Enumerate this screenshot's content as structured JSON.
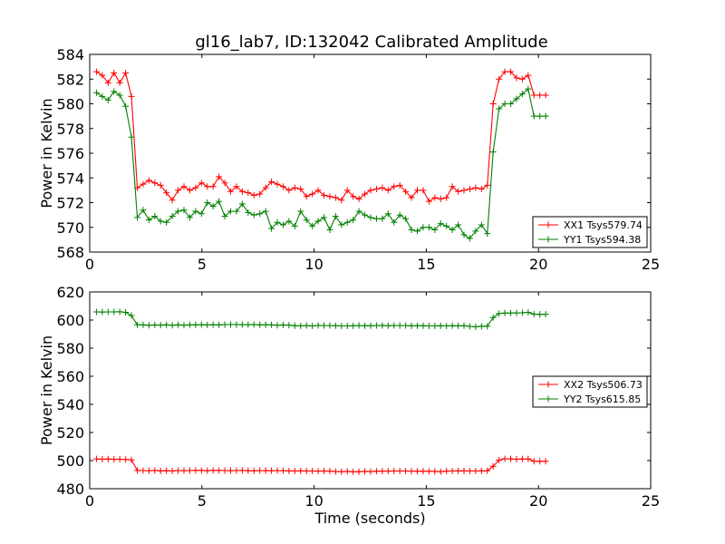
{
  "chart_data": [
    {
      "type": "line",
      "title": "gl16_lab7, ID:132042 Calibrated Amplitude",
      "xlabel": "",
      "ylabel": "Power in Kelvin",
      "xlim": [
        0,
        25
      ],
      "ylim": [
        568,
        584
      ],
      "xticks": [
        0,
        5,
        10,
        15,
        20,
        25
      ],
      "yticks": [
        568,
        570,
        572,
        574,
        576,
        578,
        580,
        582,
        584
      ],
      "grid": false,
      "legend_position": "lower-right",
      "x": [
        0.3,
        0.56,
        0.82,
        1.08,
        1.34,
        1.6,
        1.86,
        2.12,
        2.38,
        2.64,
        2.9,
        3.16,
        3.42,
        3.68,
        3.94,
        4.2,
        4.46,
        4.72,
        4.98,
        5.24,
        5.5,
        5.76,
        6.02,
        6.28,
        6.54,
        6.8,
        7.06,
        7.32,
        7.58,
        7.84,
        8.1,
        8.36,
        8.62,
        8.88,
        9.14,
        9.4,
        9.66,
        9.92,
        10.18,
        10.44,
        10.7,
        10.96,
        11.22,
        11.48,
        11.74,
        12.0,
        12.26,
        12.52,
        12.78,
        13.04,
        13.3,
        13.56,
        13.82,
        14.08,
        14.34,
        14.6,
        14.86,
        15.12,
        15.38,
        15.64,
        15.9,
        16.16,
        16.42,
        16.68,
        16.94,
        17.2,
        17.46,
        17.72,
        17.98,
        18.24,
        18.5,
        18.76,
        19.02,
        19.28,
        19.54,
        19.8,
        20.06,
        20.32
      ],
      "series": [
        {
          "name": "XX1 Tsys579.74",
          "color": "#ff0000",
          "values": [
            582.6,
            582.3,
            581.7,
            582.5,
            581.7,
            582.5,
            580.6,
            573.2,
            573.5,
            573.8,
            573.6,
            573.4,
            572.8,
            572.2,
            573.0,
            573.3,
            573.0,
            573.2,
            573.6,
            573.3,
            573.3,
            574.1,
            573.6,
            572.9,
            573.3,
            572.9,
            572.8,
            572.6,
            572.7,
            573.2,
            573.7,
            573.5,
            573.3,
            573.0,
            573.2,
            573.1,
            572.5,
            572.7,
            573.0,
            572.6,
            572.5,
            572.4,
            572.2,
            573.0,
            572.5,
            572.3,
            572.7,
            573.0,
            573.1,
            573.2,
            573.0,
            573.3,
            573.4,
            572.9,
            572.4,
            573.0,
            573.0,
            572.1,
            572.4,
            572.3,
            572.4,
            573.3,
            572.9,
            573.0,
            573.1,
            573.2,
            573.1,
            573.4,
            580.0,
            582.0,
            582.6,
            582.6,
            582.1,
            582.0,
            582.3,
            580.7,
            580.7,
            580.7
          ]
        },
        {
          "name": "YY1 Tsys594.38",
          "color": "#008000",
          "values": [
            580.9,
            580.6,
            580.3,
            581.0,
            580.7,
            579.8,
            577.3,
            570.8,
            571.4,
            570.6,
            570.9,
            570.5,
            570.4,
            570.9,
            571.3,
            571.4,
            570.8,
            571.3,
            571.1,
            572.0,
            571.7,
            572.1,
            570.9,
            571.3,
            571.3,
            571.9,
            571.2,
            571.0,
            571.1,
            571.3,
            569.9,
            570.4,
            570.2,
            570.5,
            570.1,
            571.3,
            570.6,
            570.1,
            570.5,
            570.8,
            569.8,
            570.9,
            570.2,
            570.4,
            570.6,
            571.3,
            571.0,
            570.8,
            570.7,
            570.7,
            571.1,
            570.4,
            571.0,
            570.7,
            569.8,
            569.7,
            570.0,
            570.0,
            569.8,
            570.3,
            570.1,
            569.8,
            570.2,
            569.4,
            569.1,
            569.7,
            570.2,
            569.5,
            576.1,
            579.6,
            580.0,
            580.0,
            580.4,
            580.8,
            581.2,
            579.0,
            579.0,
            579.0
          ]
        }
      ]
    },
    {
      "type": "line",
      "title": "",
      "xlabel": "Time (seconds)",
      "ylabel": "Power in Kelvin",
      "xlim": [
        0,
        25
      ],
      "ylim": [
        480,
        620
      ],
      "xticks": [
        0,
        5,
        10,
        15,
        20,
        25
      ],
      "yticks": [
        480,
        500,
        520,
        540,
        560,
        580,
        600,
        620
      ],
      "grid": false,
      "legend_position": "center-right",
      "x": [
        0.3,
        0.56,
        0.82,
        1.08,
        1.34,
        1.6,
        1.86,
        2.12,
        2.38,
        2.64,
        2.9,
        3.16,
        3.42,
        3.68,
        3.94,
        4.2,
        4.46,
        4.72,
        4.98,
        5.24,
        5.5,
        5.76,
        6.02,
        6.28,
        6.54,
        6.8,
        7.06,
        7.32,
        7.58,
        7.84,
        8.1,
        8.36,
        8.62,
        8.88,
        9.14,
        9.4,
        9.66,
        9.92,
        10.18,
        10.44,
        10.7,
        10.96,
        11.22,
        11.48,
        11.74,
        12.0,
        12.26,
        12.52,
        12.78,
        13.04,
        13.3,
        13.56,
        13.82,
        14.08,
        14.34,
        14.6,
        14.86,
        15.12,
        15.38,
        15.64,
        15.9,
        16.16,
        16.42,
        16.68,
        16.94,
        17.2,
        17.46,
        17.72,
        17.98,
        18.24,
        18.5,
        18.76,
        19.02,
        19.28,
        19.54,
        19.8,
        20.06,
        20.32
      ],
      "series": [
        {
          "name": "XX2 Tsys506.73",
          "color": "#ff0000",
          "values": [
            501.2,
            501.0,
            501.1,
            500.9,
            501.0,
            500.8,
            500.5,
            493.0,
            492.9,
            492.8,
            493.0,
            492.7,
            492.8,
            492.6,
            492.9,
            492.8,
            492.9,
            493.0,
            493.0,
            492.8,
            493.0,
            493.0,
            492.9,
            492.8,
            492.9,
            493.0,
            492.8,
            492.7,
            492.9,
            492.8,
            492.8,
            492.9,
            492.8,
            492.7,
            492.6,
            492.7,
            492.6,
            492.6,
            492.5,
            492.6,
            492.5,
            492.2,
            492.1,
            492.3,
            492.0,
            492.1,
            492.3,
            492.2,
            492.4,
            492.5,
            492.5,
            492.6,
            492.6,
            492.6,
            492.5,
            492.4,
            492.5,
            492.4,
            492.3,
            492.1,
            492.5,
            492.6,
            492.7,
            492.7,
            492.6,
            492.6,
            492.7,
            492.8,
            496.0,
            500.3,
            501.3,
            501.2,
            501.0,
            501.1,
            501.2,
            499.5,
            499.5,
            499.5
          ]
        },
        {
          "name": "YY2 Tsys615.85",
          "color": "#008000",
          "values": [
            605.8,
            605.7,
            605.8,
            605.8,
            605.9,
            605.5,
            603.2,
            596.6,
            596.6,
            596.3,
            596.5,
            596.4,
            596.6,
            596.3,
            596.6,
            596.3,
            596.6,
            596.6,
            596.7,
            596.5,
            596.7,
            596.5,
            596.8,
            596.8,
            596.8,
            596.7,
            596.7,
            596.8,
            596.6,
            596.7,
            596.6,
            596.3,
            596.5,
            596.4,
            596.0,
            595.9,
            596.1,
            595.8,
            596.2,
            596.1,
            596.1,
            596.0,
            595.8,
            595.8,
            595.9,
            596.1,
            596.0,
            596.0,
            596.1,
            596.2,
            596.0,
            596.1,
            596.1,
            596.1,
            595.9,
            596.0,
            596.0,
            595.8,
            595.8,
            596.0,
            595.8,
            596.0,
            595.9,
            596.0,
            595.5,
            595.2,
            595.6,
            595.6,
            601.8,
            604.6,
            605.0,
            605.0,
            605.1,
            605.2,
            605.5,
            604.1,
            604.1,
            604.1
          ]
        }
      ]
    }
  ]
}
